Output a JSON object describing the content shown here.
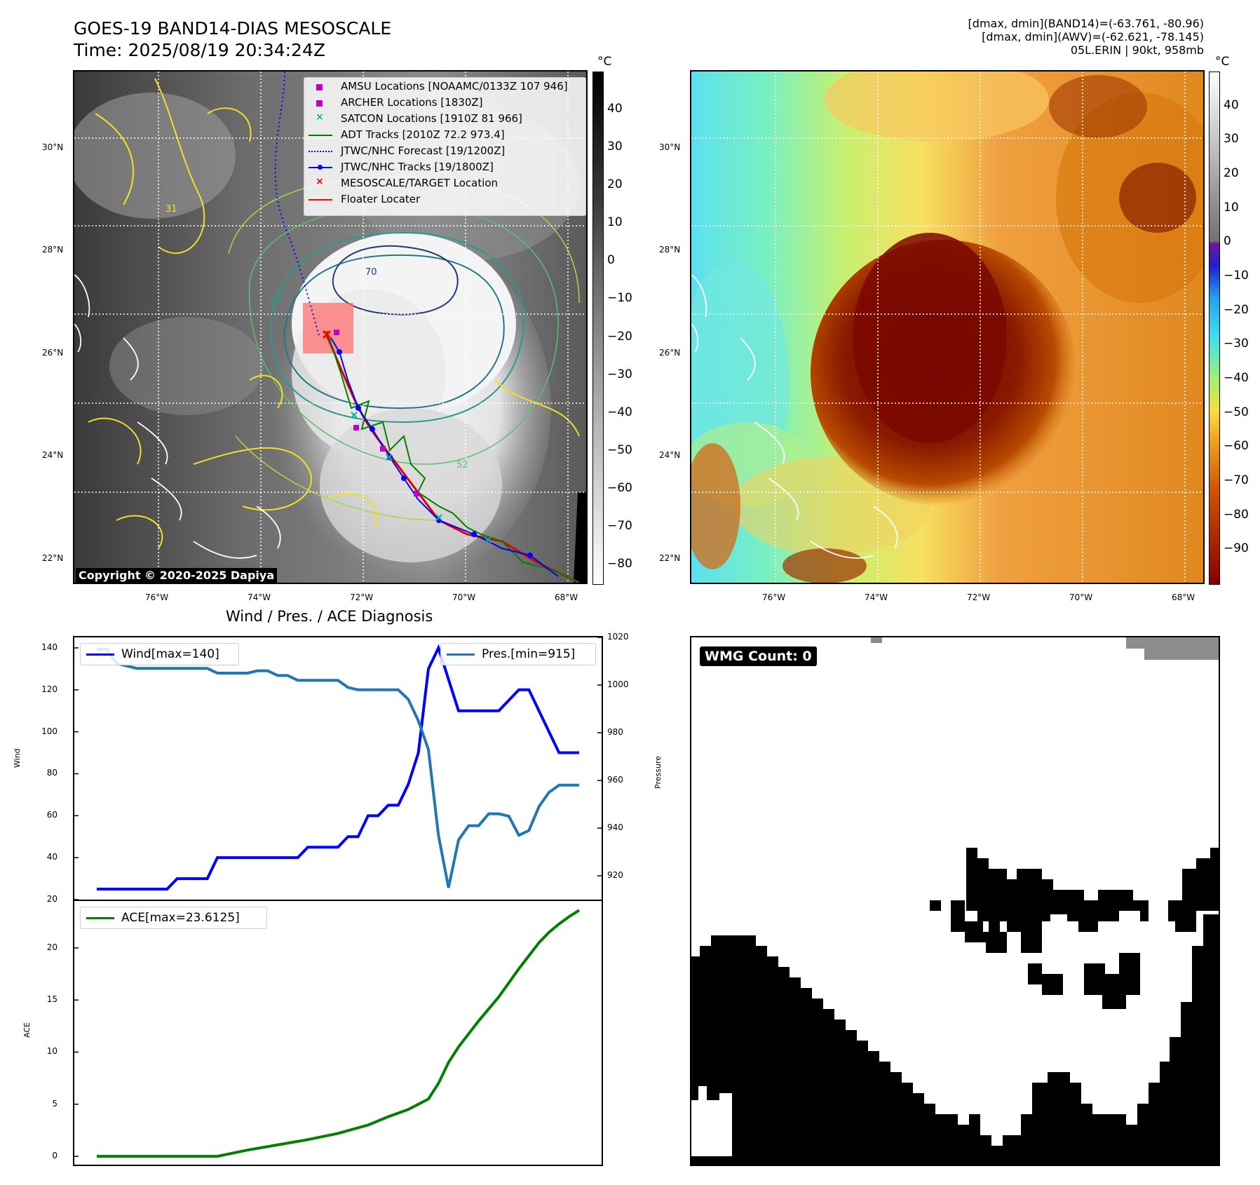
{
  "header": {
    "title": "GOES-19 BAND14-DIAS MESOSCALE",
    "time": "Time: 2025/08/19 20:34:24Z",
    "info_line1": "[dmax, dmin](BAND14)=(-63.761, -80.96)",
    "info_line2": "[dmax, dmin](AWV)=(-62.621, -78.145)",
    "info_line3": "05L.ERIN | 90kt, 958mb"
  },
  "maps": {
    "lat_ticks": [
      "30°N",
      "28°N",
      "26°N",
      "24°N",
      "22°N"
    ],
    "lon_ticks": [
      "76°W",
      "74°W",
      "72°W",
      "70°W",
      "68°W"
    ],
    "colorbar_unit": "°C",
    "left_colorbar_ticks": [
      "40",
      "30",
      "20",
      "10",
      "0",
      "−10",
      "−20",
      "−30",
      "−40",
      "−50",
      "−60",
      "−70",
      "−80"
    ],
    "right_colorbar_ticks": [
      "40",
      "30",
      "20",
      "10",
      "0",
      "−10",
      "−20",
      "−30",
      "−40",
      "−50",
      "−60",
      "−70",
      "−80",
      "−90"
    ],
    "copyright": "Copyright © 2020-2025 Dapiya",
    "contour_labels": [
      "64",
      "64",
      "52",
      "70",
      "31"
    ],
    "legend": [
      {
        "label": "AMSU Locations [NOAAMC/0133Z 107 946]",
        "marker": "square",
        "color": "#c000c0"
      },
      {
        "label": "ARCHER Locations [1830Z]",
        "marker": "square",
        "color": "#c000c0"
      },
      {
        "label": "SATCON Locations [1910Z 81 966]",
        "marker": "x",
        "color": "#00b0b0"
      },
      {
        "label": "ADT Tracks [2010Z 72.2 973.4]",
        "marker": "line",
        "color": "#008000"
      },
      {
        "label": "JTWC/NHC Forecast [19/1200Z]",
        "marker": "dotted",
        "color": "#0000ff"
      },
      {
        "label": "JTWC/NHC Tracks [19/1800Z]",
        "marker": "line-dot",
        "color": "#0000ff"
      },
      {
        "label": "MESOSCALE/TARGET Location",
        "marker": "x",
        "color": "#ff0000"
      },
      {
        "label": "Floater Locater",
        "marker": "line",
        "color": "#ff0000"
      }
    ]
  },
  "diagnosis": {
    "title": "Wind / Pres. / ACE Diagnosis",
    "wind_axis_label": "Wind",
    "pressure_axis_label": "Pressure",
    "ace_axis_label": "ACE",
    "wind_legend": "Wind[max=140]",
    "pressure_legend": "Pres.[min=915]",
    "ace_legend": "ACE[max=23.6125]",
    "wind_ticks": [
      "140",
      "120",
      "100",
      "80",
      "60",
      "40",
      "20"
    ],
    "pressure_ticks": [
      "1020",
      "1000",
      "980",
      "960",
      "940",
      "920"
    ],
    "ace_ticks": [
      "20",
      "15",
      "10",
      "5",
      "0"
    ]
  },
  "wmg": {
    "label": "WMG Count: 0"
  },
  "colors": {
    "wind": "#0000ff",
    "pressure": "#1f77b4",
    "ace": "#008000"
  },
  "chart_data": [
    {
      "type": "line",
      "title": "Wind / Pres. / ACE Diagnosis",
      "ylabel": "Wind",
      "ylim": [
        20,
        145
      ],
      "x": [
        0,
        1,
        2,
        3,
        4,
        5,
        6,
        7,
        8,
        9,
        10,
        11,
        12,
        13,
        14,
        15,
        16,
        17,
        18,
        19,
        20,
        21,
        22,
        23,
        24,
        25,
        26,
        27,
        28,
        29,
        30,
        31,
        32,
        33,
        34,
        35,
        36,
        37,
        38,
        39,
        40,
        41,
        42,
        43,
        44,
        45,
        46,
        47,
        48
      ],
      "series": [
        {
          "name": "Wind[max=140]",
          "values": [
            25,
            25,
            25,
            25,
            25,
            25,
            25,
            25,
            30,
            30,
            30,
            30,
            40,
            40,
            40,
            40,
            40,
            40,
            40,
            40,
            40,
            45,
            45,
            45,
            45,
            50,
            50,
            60,
            60,
            65,
            65,
            75,
            90,
            130,
            140,
            125,
            110,
            110,
            110,
            110,
            110,
            115,
            120,
            120,
            110,
            100,
            90,
            90,
            90
          ]
        }
      ]
    },
    {
      "type": "line",
      "ylabel": "Pressure",
      "ylim": [
        910,
        1020
      ],
      "x": [
        0,
        1,
        2,
        3,
        4,
        5,
        6,
        7,
        8,
        9,
        10,
        11,
        12,
        13,
        14,
        15,
        16,
        17,
        18,
        19,
        20,
        21,
        22,
        23,
        24,
        25,
        26,
        27,
        28,
        29,
        30,
        31,
        32,
        33,
        34,
        35,
        36,
        37,
        38,
        39,
        40,
        41,
        42,
        43,
        44,
        45,
        46,
        47,
        48
      ],
      "series": [
        {
          "name": "Pres.[min=915]",
          "values": [
            1015,
            1015,
            1009,
            1008,
            1007,
            1007,
            1007,
            1007,
            1007,
            1007,
            1007,
            1007,
            1005,
            1005,
            1005,
            1005,
            1006,
            1006,
            1004,
            1004,
            1002,
            1002,
            1002,
            1002,
            1002,
            999,
            998,
            998,
            998,
            998,
            998,
            994,
            985,
            973,
            937,
            915,
            935,
            941,
            941,
            946,
            946,
            945,
            937,
            939,
            949,
            955,
            958,
            958,
            958
          ]
        }
      ]
    },
    {
      "type": "line",
      "ylabel": "ACE",
      "ylim": [
        -0.8,
        24.5
      ],
      "x": [
        0,
        3,
        6,
        9,
        12,
        15,
        18,
        21,
        24,
        27,
        29,
        31,
        32,
        33,
        34,
        35,
        36,
        38,
        40,
        42,
        44,
        45,
        46,
        47,
        48
      ],
      "series": [
        {
          "name": "ACE[max=23.6125]",
          "values": [
            0,
            0,
            0,
            0,
            0,
            0.6,
            1.1,
            1.6,
            2.2,
            3.0,
            3.8,
            4.5,
            5.0,
            5.5,
            7.0,
            9.0,
            10.5,
            13.0,
            15.3,
            18.0,
            20.5,
            21.5,
            22.3,
            23.0,
            23.6125
          ]
        }
      ]
    }
  ]
}
